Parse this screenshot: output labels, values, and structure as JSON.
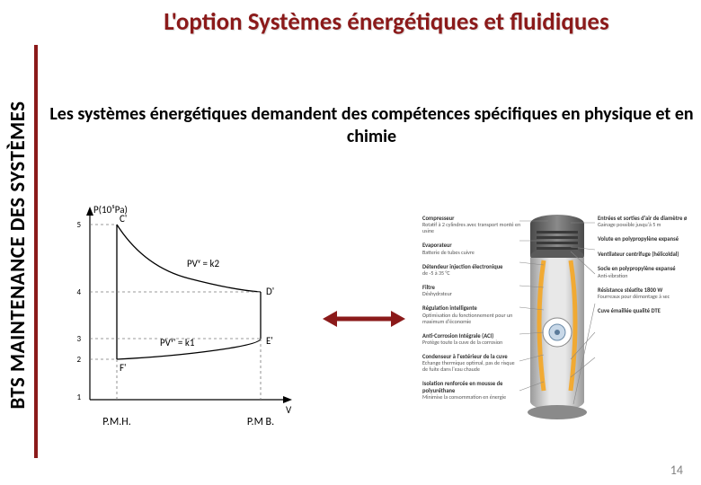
{
  "sidebar": {
    "label": "BTS MAINTENANCE DES SYSTÈMES",
    "rule_color": "#8b1a1a"
  },
  "title": "L'option Systèmes énergétiques et fluidiques",
  "title_color": "#8b1a1a",
  "subtitle": "Les systèmes énergétiques demandent des compétences spécifiques en physique et en chimie",
  "page_number": "14",
  "pv_diagram": {
    "y_axis_label": "P(10⁵Pa)",
    "x_axis_label": "V",
    "curve_top_label": "PVᵞ = k2",
    "curve_bottom_label": "PVᵞ' = k1",
    "point_C": "C'",
    "point_D": "D'",
    "point_E": "E'",
    "point_F": "F'",
    "caption_left": "P.M.H.",
    "caption_right": "P.M B.",
    "line_color": "#000000",
    "dash_color": "#777777"
  },
  "arrow": {
    "color": "#8b1a1a"
  },
  "device": {
    "body_gradient_inner": "#d8d8d8",
    "body_gradient_outer": "#b0b0b0",
    "accent_color": "#f5a623",
    "top_color": "#6a6a6a",
    "base_color": "#9a9a9a",
    "callout_line_color": "#888888",
    "callouts_left": [
      {
        "title": "Compresseur",
        "desc": "Rotatif à 2 cylindres avec transport monté en usine"
      },
      {
        "title": "Evaporateur",
        "desc": "Batterie de tubes cuivre"
      },
      {
        "title": "Détendeur injection électronique",
        "desc": "de -5 à 35 °C"
      },
      {
        "title": "Filtre",
        "desc": "Déshydrateur"
      },
      {
        "title": "Régulation intelligente",
        "desc": "Optimisation du fonctionnement pour un maximum d'économie"
      },
      {
        "title": "Anti-Corrosion Intégrale (ACI)",
        "desc": "Protège toute la cuve de la corrosion"
      },
      {
        "title": "Condenseur à l'extérieur de la cuve",
        "desc": "Echange thermique optimal, pas de risque de fuite dans l'eau chaude"
      },
      {
        "title": "Isolation renforcée en mousse de polyuréthane",
        "desc": "Minimise la consommation en énergie"
      }
    ],
    "callouts_right": [
      {
        "title": "Entrées et sorties d'air de diamètre ø",
        "desc": "Gainage possible jusqu'à 5 m"
      },
      {
        "title": "Volute en polypropylène expansé",
        "desc": ""
      },
      {
        "title": "Ventilateur centrifuge (hélicoïdal)",
        "desc": ""
      },
      {
        "title": "Socle en polypropylène expansé",
        "desc": "Anti-vibration"
      },
      {
        "title": "Résistance stéatite 1800 W",
        "desc": "Fourreaux pour démontage à sec"
      },
      {
        "title": "Cuve émaillée qualité DTE",
        "desc": ""
      }
    ]
  }
}
